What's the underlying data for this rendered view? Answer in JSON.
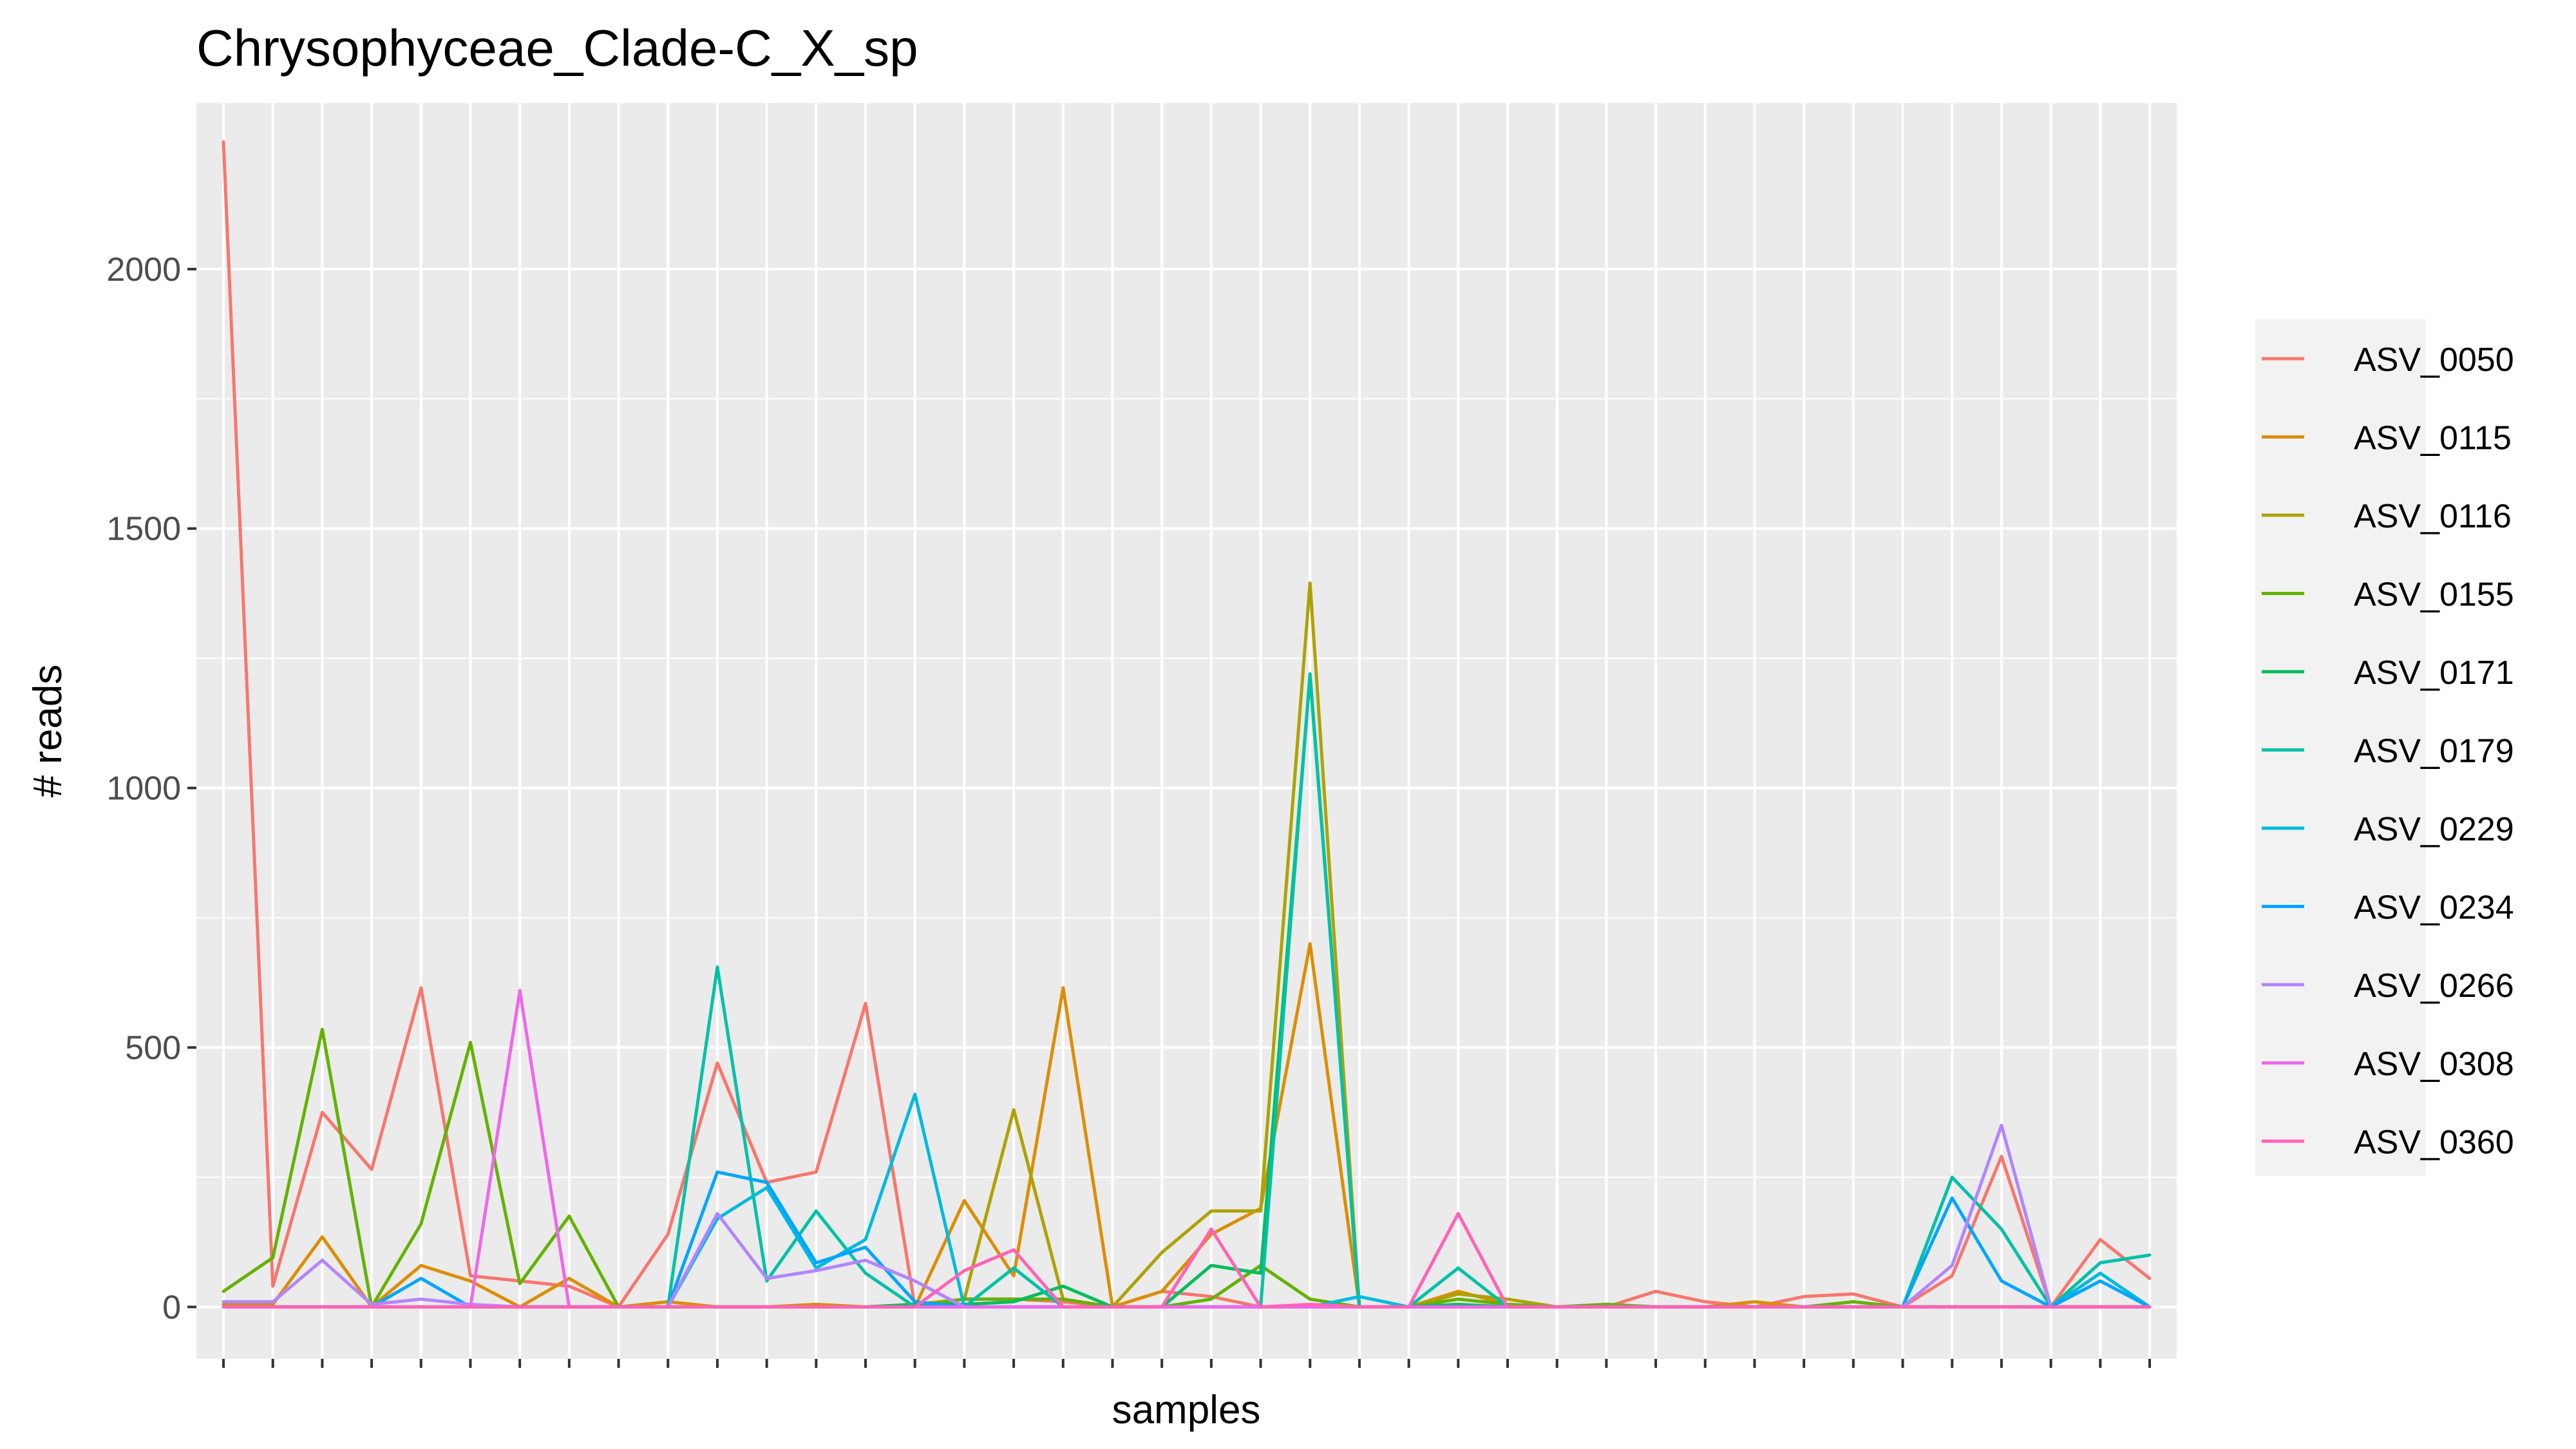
{
  "chart_data": {
    "type": "line",
    "title": "Chrysophyceae_Clade-C_X_sp",
    "xlabel": "samples",
    "ylabel": "# reads",
    "ylim": [
      -100,
      2320
    ],
    "yticks": [
      0,
      500,
      1000,
      1500,
      2000
    ],
    "x_tick_labels_shown": false,
    "sample_count": 40,
    "grid": true,
    "legend_position": "right",
    "panel_background": "#ebebeb",
    "series": [
      {
        "name": "ASV_0050",
        "color": "#F8766D",
        "values": [
          2245,
          40,
          375,
          265,
          615,
          60,
          50,
          40,
          0,
          140,
          470,
          240,
          260,
          585,
          0,
          15,
          15,
          10,
          0,
          30,
          20,
          0,
          0,
          0,
          0,
          0,
          0,
          0,
          0,
          30,
          10,
          0,
          20,
          25,
          0,
          60,
          290,
          0,
          130,
          55
        ]
      },
      {
        "name": "ASV_0115",
        "color": "#DB8E00",
        "values": [
          5,
          5,
          135,
          0,
          80,
          50,
          0,
          55,
          0,
          10,
          0,
          0,
          5,
          0,
          0,
          205,
          60,
          615,
          0,
          30,
          140,
          190,
          700,
          0,
          0,
          30,
          5,
          0,
          0,
          0,
          0,
          10,
          0,
          0,
          0,
          0,
          0,
          0,
          0,
          0
        ]
      },
      {
        "name": "ASV_0116",
        "color": "#AEA200",
        "values": [
          0,
          0,
          0,
          0,
          0,
          0,
          0,
          0,
          0,
          0,
          0,
          0,
          0,
          0,
          5,
          15,
          380,
          15,
          0,
          105,
          185,
          185,
          1395,
          0,
          0,
          25,
          15,
          0,
          5,
          0,
          0,
          0,
          0,
          0,
          0,
          0,
          0,
          0,
          0,
          0
        ]
      },
      {
        "name": "ASV_0155",
        "color": "#64B200",
        "values": [
          30,
          95,
          535,
          0,
          160,
          510,
          45,
          175,
          0,
          0,
          0,
          0,
          0,
          0,
          0,
          15,
          15,
          15,
          0,
          0,
          15,
          80,
          15,
          0,
          0,
          15,
          5,
          0,
          5,
          0,
          0,
          0,
          0,
          10,
          0,
          0,
          0,
          0,
          0,
          0
        ]
      },
      {
        "name": "ASV_0171",
        "color": "#00BD5C",
        "values": [
          0,
          0,
          0,
          0,
          0,
          0,
          0,
          0,
          0,
          0,
          0,
          0,
          0,
          0,
          5,
          5,
          10,
          40,
          0,
          0,
          80,
          65,
          1215,
          0,
          0,
          5,
          0,
          0,
          0,
          0,
          0,
          0,
          0,
          0,
          0,
          0,
          0,
          0,
          0,
          0
        ]
      },
      {
        "name": "ASV_0179",
        "color": "#00C1A7",
        "values": [
          0,
          0,
          0,
          0,
          0,
          0,
          0,
          0,
          0,
          0,
          655,
          50,
          185,
          65,
          0,
          0,
          75,
          0,
          0,
          0,
          0,
          0,
          1220,
          0,
          0,
          75,
          0,
          0,
          0,
          0,
          0,
          0,
          0,
          0,
          0,
          250,
          150,
          0,
          85,
          100
        ]
      },
      {
        "name": "ASV_0229",
        "color": "#00BADE",
        "values": [
          0,
          0,
          0,
          0,
          0,
          0,
          0,
          0,
          0,
          0,
          170,
          230,
          75,
          130,
          410,
          0,
          0,
          0,
          0,
          0,
          0,
          0,
          0,
          20,
          0,
          0,
          0,
          0,
          0,
          0,
          0,
          0,
          0,
          0,
          0,
          0,
          0,
          0,
          65,
          0
        ]
      },
      {
        "name": "ASV_0234",
        "color": "#00A6FF",
        "values": [
          0,
          0,
          0,
          0,
          55,
          0,
          0,
          0,
          0,
          0,
          260,
          240,
          85,
          115,
          10,
          0,
          0,
          0,
          0,
          0,
          0,
          0,
          0,
          0,
          0,
          0,
          0,
          0,
          0,
          0,
          0,
          0,
          0,
          0,
          0,
          210,
          50,
          0,
          50,
          0
        ]
      },
      {
        "name": "ASV_0266",
        "color": "#B385FF",
        "values": [
          10,
          10,
          90,
          5,
          15,
          5,
          0,
          0,
          0,
          0,
          180,
          55,
          70,
          90,
          50,
          0,
          0,
          0,
          0,
          0,
          0,
          0,
          0,
          0,
          0,
          0,
          0,
          0,
          0,
          0,
          0,
          0,
          0,
          0,
          0,
          80,
          350,
          0,
          0,
          0
        ]
      },
      {
        "name": "ASV_0308",
        "color": "#EF67EB",
        "values": [
          0,
          0,
          0,
          0,
          0,
          0,
          610,
          0,
          0,
          0,
          0,
          0,
          0,
          0,
          0,
          0,
          0,
          0,
          0,
          0,
          0,
          0,
          0,
          0,
          0,
          0,
          0,
          0,
          0,
          0,
          0,
          0,
          0,
          0,
          0,
          0,
          0,
          0,
          0,
          0
        ]
      },
      {
        "name": "ASV_0360",
        "color": "#FF63B6",
        "values": [
          0,
          0,
          0,
          0,
          0,
          0,
          0,
          0,
          0,
          0,
          0,
          0,
          0,
          0,
          0,
          70,
          110,
          0,
          0,
          0,
          150,
          0,
          5,
          0,
          0,
          180,
          0,
          0,
          0,
          0,
          0,
          0,
          0,
          0,
          0,
          0,
          0,
          0,
          0,
          0
        ]
      }
    ]
  }
}
